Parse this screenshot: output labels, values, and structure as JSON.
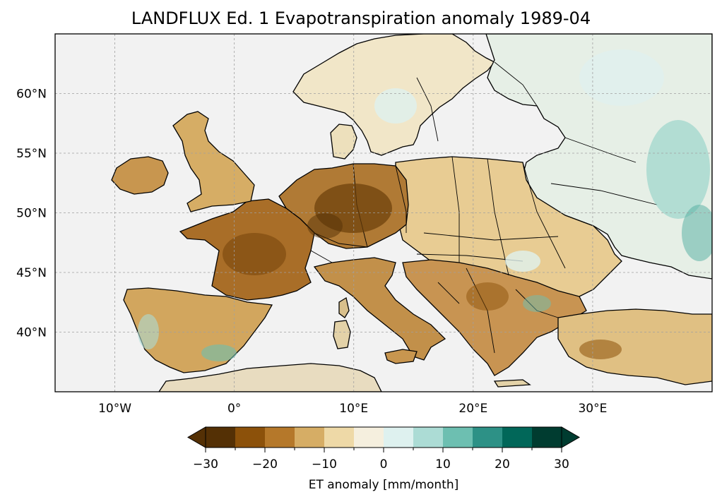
{
  "title": "LANDFLUX Ed. 1 Evapotranspiration anomaly 1989-04",
  "map": {
    "lon_range": [
      -15,
      40
    ],
    "lat_range": [
      35,
      65
    ],
    "lon_ticks": [
      {
        "value": -10,
        "label": "10°W"
      },
      {
        "value": 0,
        "label": "0°"
      },
      {
        "value": 10,
        "label": "10°E"
      },
      {
        "value": 20,
        "label": "20°E"
      },
      {
        "value": 30,
        "label": "30°E"
      }
    ],
    "lat_ticks": [
      {
        "value": 40,
        "label": "40°N"
      },
      {
        "value": 45,
        "label": "45°N"
      },
      {
        "value": 50,
        "label": "50°N"
      },
      {
        "value": 55,
        "label": "55°N"
      },
      {
        "value": 60,
        "label": "60°N"
      }
    ],
    "gridlines": true,
    "ocean_color": "#f2f2f2",
    "border_color": "#000000"
  },
  "colorbar": {
    "label": "ET anomaly [mm/month]",
    "bounds": [
      -30,
      -25,
      -20,
      -15,
      -10,
      -5,
      0,
      5,
      10,
      15,
      20,
      25,
      30
    ],
    "tick_values": [
      -30,
      -20,
      -10,
      0,
      10,
      20,
      30
    ],
    "tick_labels": [
      "−30",
      "−20",
      "−10",
      "0",
      "10",
      "20",
      "30"
    ],
    "colors": [
      "#543005",
      "#8c510a",
      "#b5782a",
      "#d6ad65",
      "#eed9a7",
      "#f5efde",
      "#def1ef",
      "#acdcd5",
      "#6dbfb1",
      "#2d9186",
      "#016759",
      "#003c30"
    ],
    "extend": "both"
  }
}
